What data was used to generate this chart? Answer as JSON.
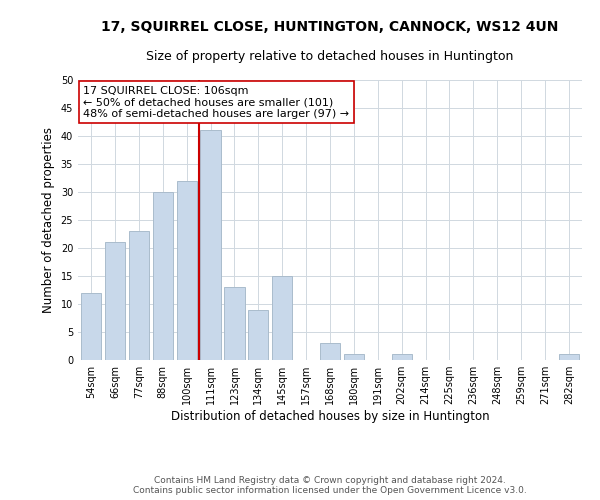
{
  "title": "17, SQUIRREL CLOSE, HUNTINGTON, CANNOCK, WS12 4UN",
  "subtitle": "Size of property relative to detached houses in Huntington",
  "xlabel": "Distribution of detached houses by size in Huntington",
  "ylabel": "Number of detached properties",
  "categories": [
    "54sqm",
    "66sqm",
    "77sqm",
    "88sqm",
    "100sqm",
    "111sqm",
    "123sqm",
    "134sqm",
    "145sqm",
    "157sqm",
    "168sqm",
    "180sqm",
    "191sqm",
    "202sqm",
    "214sqm",
    "225sqm",
    "236sqm",
    "248sqm",
    "259sqm",
    "271sqm",
    "282sqm"
  ],
  "values": [
    12,
    21,
    23,
    30,
    32,
    41,
    13,
    9,
    15,
    0,
    3,
    1,
    0,
    1,
    0,
    0,
    0,
    0,
    0,
    0,
    1
  ],
  "bar_color": "#c8d8ea",
  "bar_edgecolor": "#aabccc",
  "vline_color": "#cc0000",
  "vline_x_index": 5,
  "annotation_title": "17 SQUIRREL CLOSE: 106sqm",
  "annotation_line1": "← 50% of detached houses are smaller (101)",
  "annotation_line2": "48% of semi-detached houses are larger (97) →",
  "annotation_box_edgecolor": "#cc0000",
  "annotation_box_facecolor": "#ffffff",
  "ylim": [
    0,
    50
  ],
  "yticks": [
    0,
    5,
    10,
    15,
    20,
    25,
    30,
    35,
    40,
    45,
    50
  ],
  "footer_line1": "Contains HM Land Registry data © Crown copyright and database right 2024.",
  "footer_line2": "Contains public sector information licensed under the Open Government Licence v3.0.",
  "background_color": "#ffffff",
  "grid_color": "#d0d8e0",
  "title_fontsize": 10,
  "subtitle_fontsize": 9,
  "axis_label_fontsize": 8.5,
  "tick_fontsize": 7,
  "annotation_fontsize": 8,
  "footer_fontsize": 6.5
}
